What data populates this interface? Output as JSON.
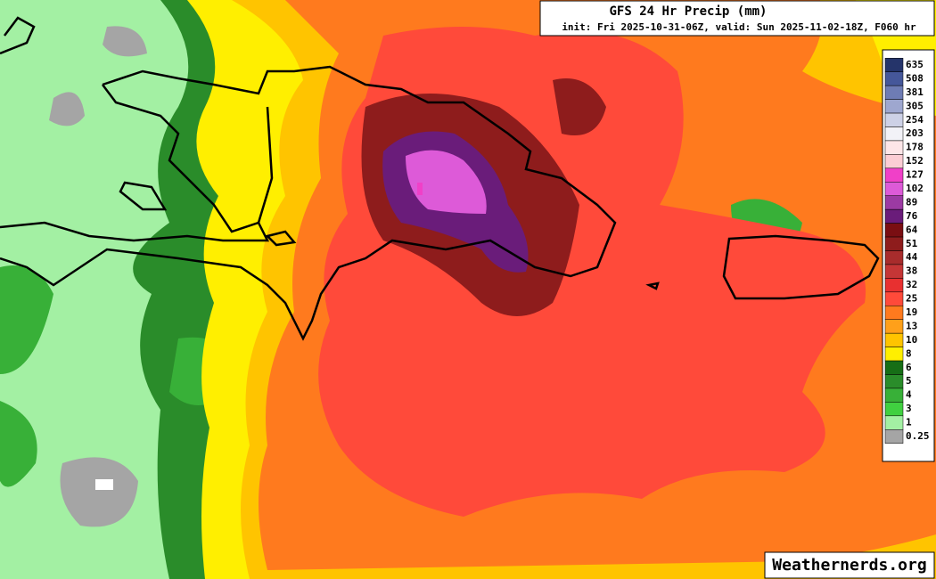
{
  "header": {
    "title": "GFS 24 Hr Precip (mm)",
    "subtitle": "init: Fri 2025-10-31-06Z, valid: Sun 2025-11-02-18Z, F060 hr"
  },
  "legend": {
    "levels": [
      {
        "value": 635,
        "color": "#25346a"
      },
      {
        "value": 508,
        "color": "#45579a"
      },
      {
        "value": 381,
        "color": "#6e7cb4"
      },
      {
        "value": 305,
        "color": "#9ea7cf"
      },
      {
        "value": 254,
        "color": "#cdd1e6"
      },
      {
        "value": 203,
        "color": "#f2f2f7"
      },
      {
        "value": 178,
        "color": "#fde6e8"
      },
      {
        "value": 152,
        "color": "#fbcdd4"
      },
      {
        "value": 127,
        "color": "#f040c8"
      },
      {
        "value": 102,
        "color": "#dd5ad8"
      },
      {
        "value": 89,
        "color": "#9c3aa3"
      },
      {
        "value": 76,
        "color": "#6a1c7a"
      },
      {
        "value": 64,
        "color": "#7a0e12"
      },
      {
        "value": 51,
        "color": "#8e1c1c"
      },
      {
        "value": 44,
        "color": "#a82c2c"
      },
      {
        "value": 38,
        "color": "#c53636"
      },
      {
        "value": 32,
        "color": "#e83030"
      },
      {
        "value": 25,
        "color": "#ff4a3a"
      },
      {
        "value": 19,
        "color": "#ff7a1e"
      },
      {
        "value": 13,
        "color": "#ffa01a"
      },
      {
        "value": 10,
        "color": "#ffc400"
      },
      {
        "value": 8,
        "color": "#ffef00"
      },
      {
        "value": 6,
        "color": "#166e16"
      },
      {
        "value": 5,
        "color": "#2a8c2a"
      },
      {
        "value": 4,
        "color": "#38b038"
      },
      {
        "value": 3,
        "color": "#40d040"
      },
      {
        "value": 1,
        "color": "#a3f0a3"
      },
      {
        "value": 0.25,
        "color": "#a5a5a5"
      }
    ]
  },
  "footer": {
    "watermark": "Weathernerds.org"
  }
}
